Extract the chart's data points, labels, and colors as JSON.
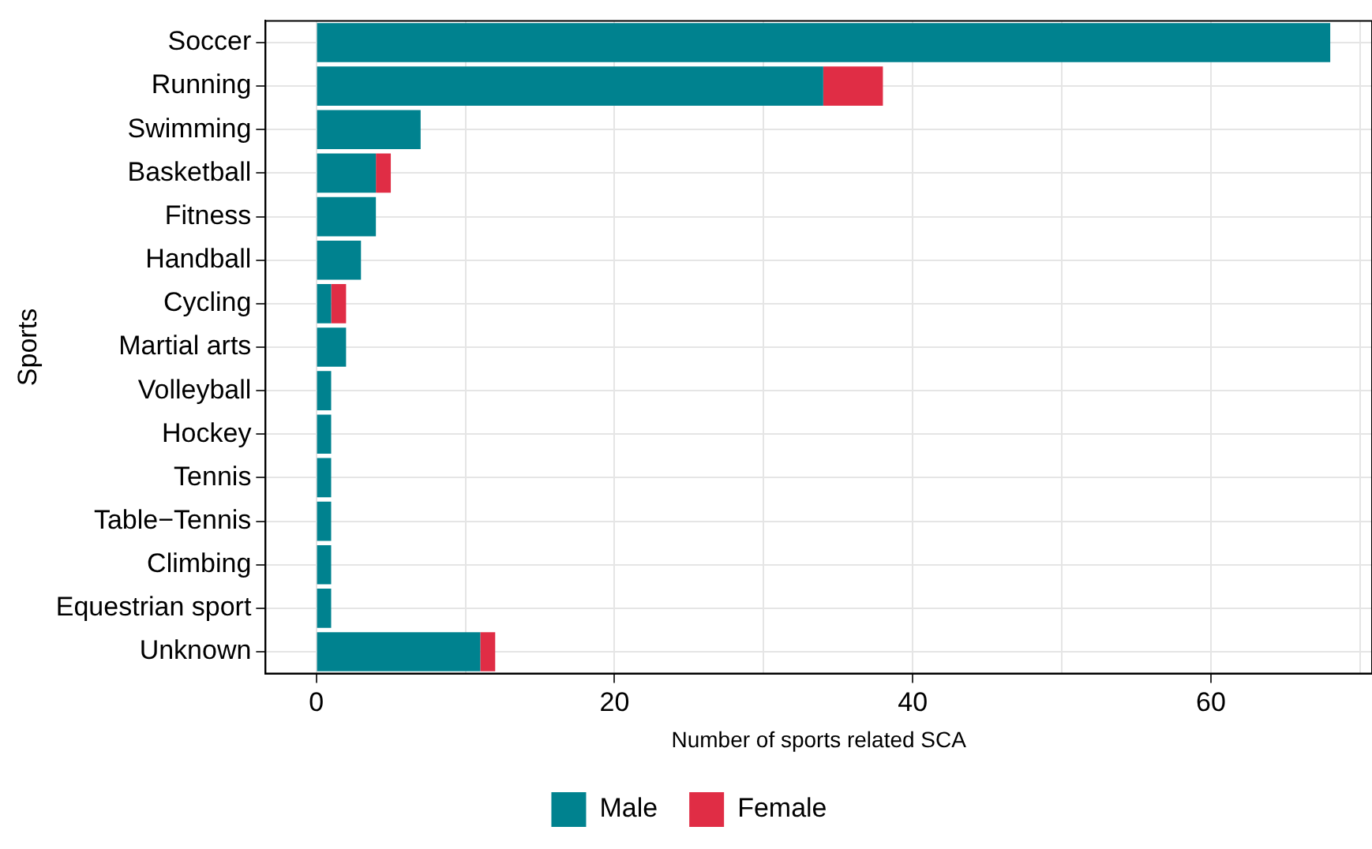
{
  "chart_data": {
    "type": "bar",
    "orientation": "horizontal",
    "stacked": true,
    "xlabel": "Number of sports related SCA",
    "ylabel": "Sports",
    "categories": [
      "Soccer",
      "Running",
      "Swimming",
      "Basketball",
      "Fitness",
      "Handball",
      "Cycling",
      "Martial arts",
      "Volleyball",
      "Hockey",
      "Tennis",
      "Table−Tennis",
      "Climbing",
      "Equestrian sport",
      "Unknown"
    ],
    "series": [
      {
        "name": "Male",
        "color": "#00828f",
        "values": [
          68,
          34,
          7,
          4,
          4,
          3,
          1,
          2,
          1,
          1,
          1,
          1,
          1,
          1,
          11
        ]
      },
      {
        "name": "Female",
        "color": "#e02d45",
        "values": [
          null,
          4,
          null,
          1,
          null,
          null,
          1,
          null,
          null,
          null,
          null,
          null,
          null,
          null,
          1
        ]
      }
    ],
    "xlim": [
      -3.4,
      70.8
    ],
    "xticks": [
      0,
      {
        "value": 10,
        "label": null
      },
      20,
      {
        "value": 30,
        "label": null
      },
      40,
      {
        "value": 50,
        "label": null
      },
      60,
      {
        "value": 70,
        "label": null
      }
    ],
    "grid": true,
    "legend": "bottom"
  }
}
